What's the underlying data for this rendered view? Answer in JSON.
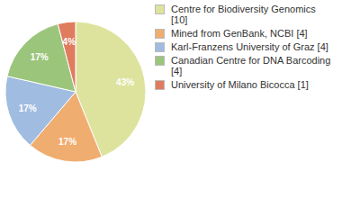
{
  "chart_data": {
    "type": "pie",
    "categories": [
      "Centre for Biodiversity Genomics [10]",
      "Mined from GenBank, NCBI [4]",
      "Karl-Franzens University of Graz [4]",
      "Canadian Centre for DNA Barcoding [4]",
      "University of Milano Bicocca [1]"
    ],
    "values": [
      43,
      17,
      17,
      17,
      4
    ],
    "value_labels": [
      "43%",
      "17%",
      "17%",
      "17%",
      "4%"
    ],
    "data_labels": true,
    "legend": "right",
    "colors": [
      "#dde39d",
      "#f0ad70",
      "#a0bce0",
      "#9cc57c",
      "#e07c5e"
    ]
  }
}
